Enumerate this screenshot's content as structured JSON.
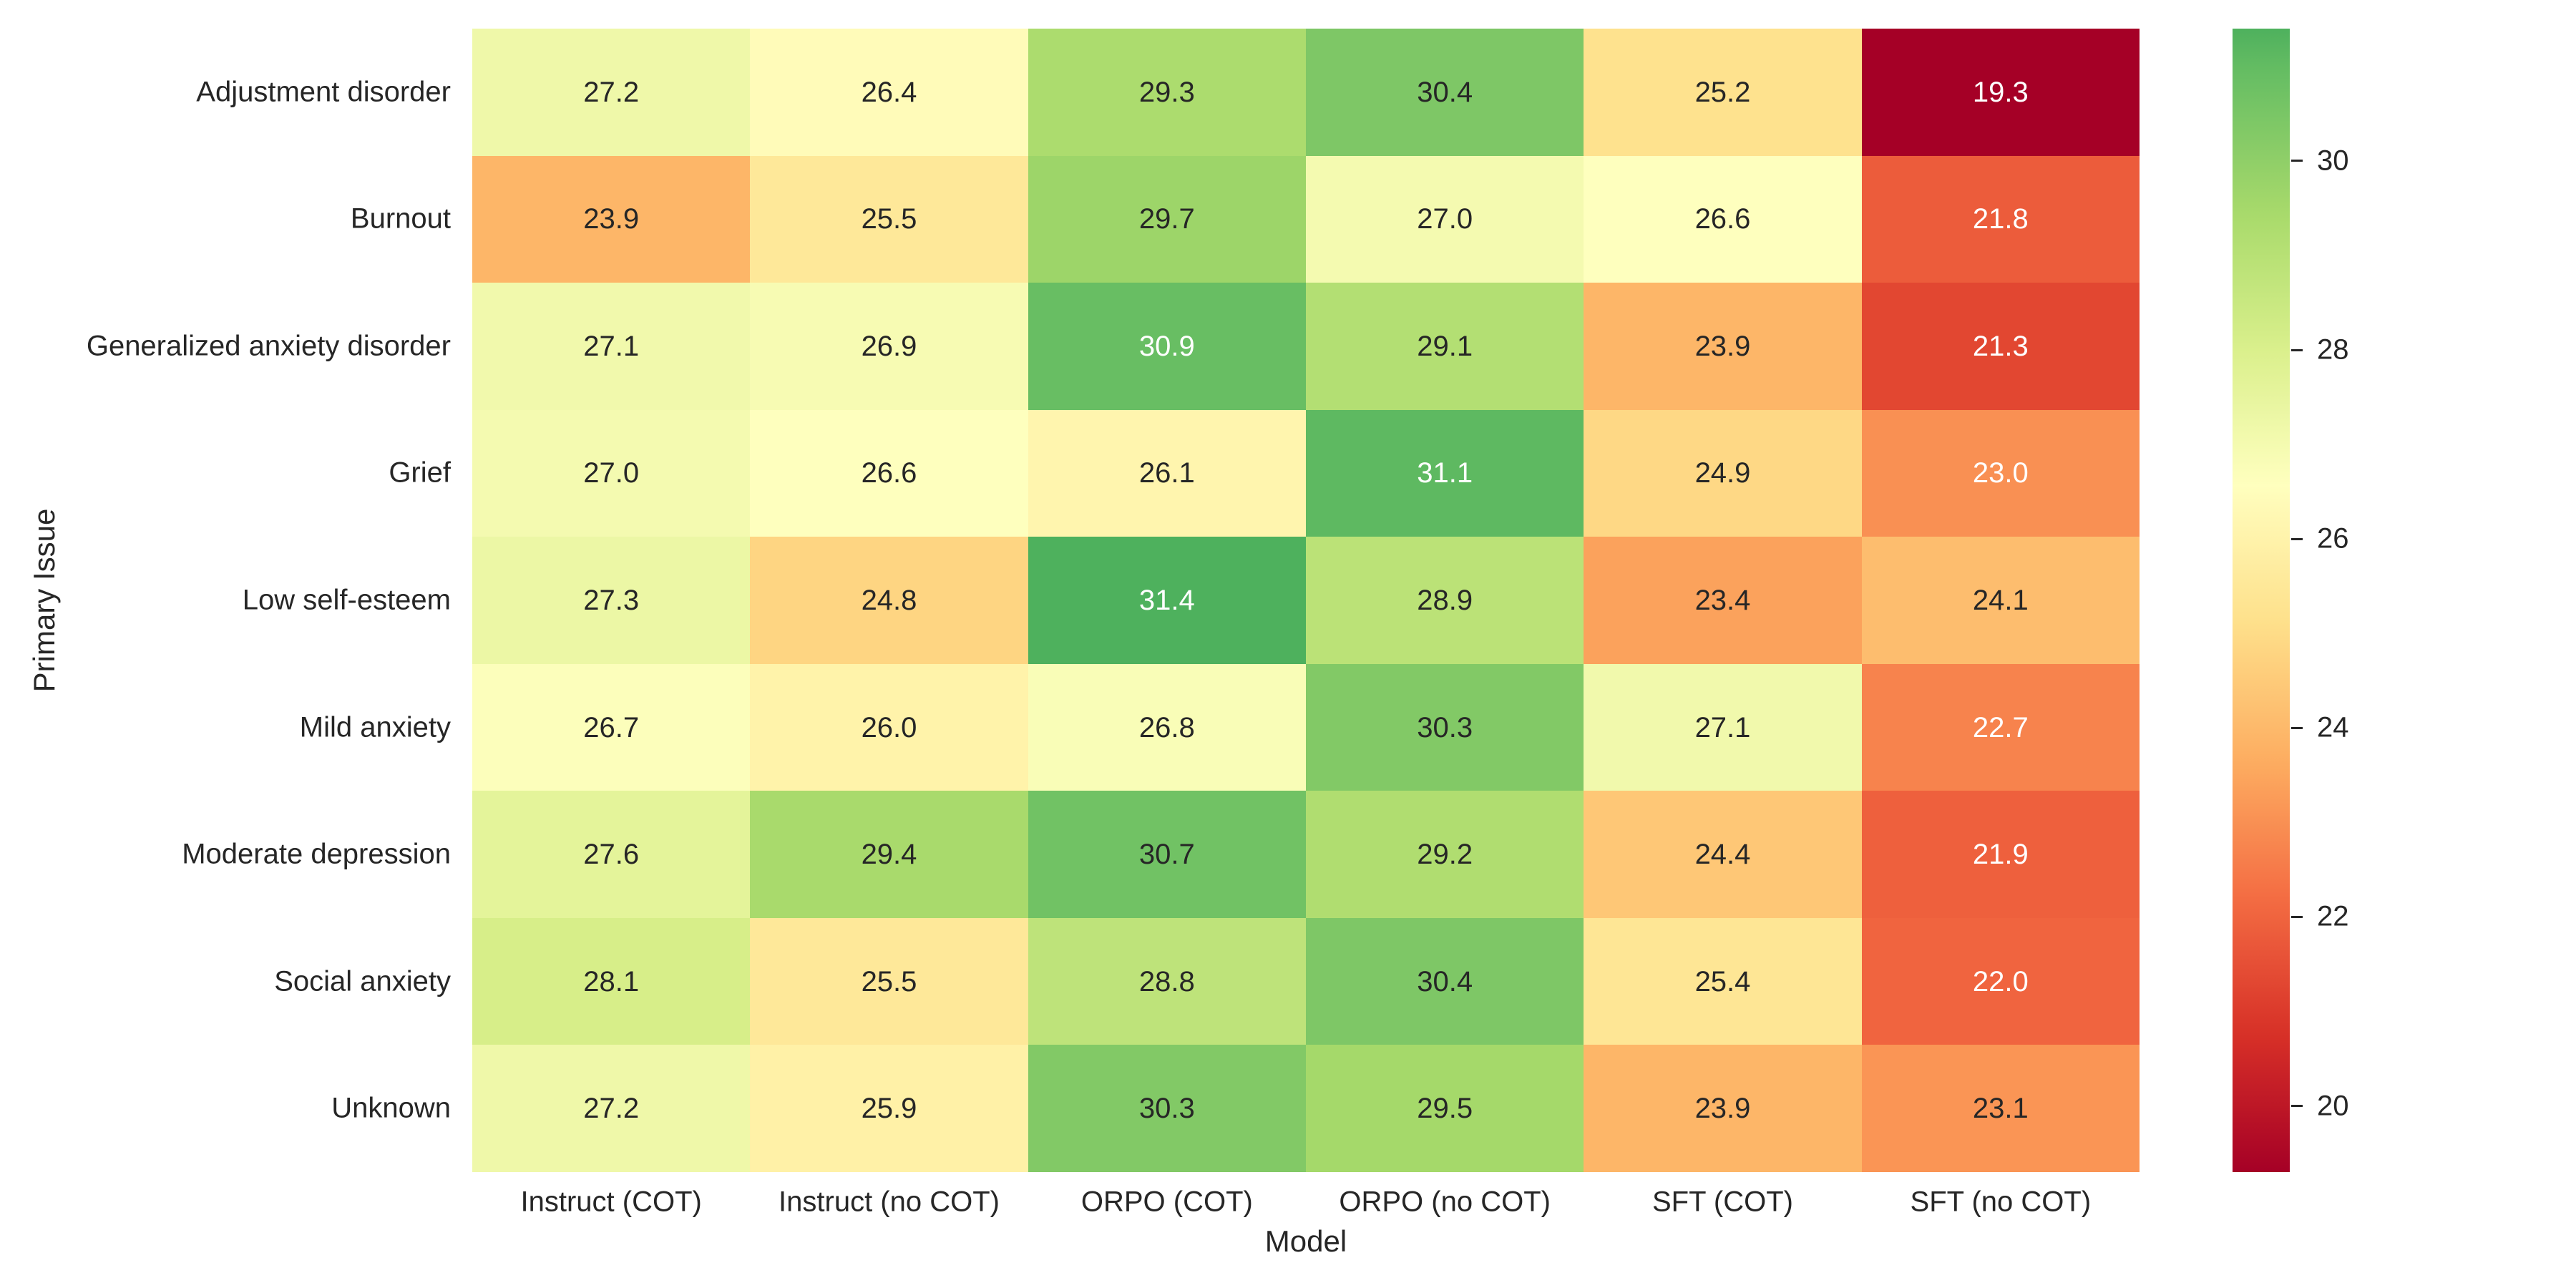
{
  "figure": {
    "background": "#ffffff",
    "text_color_dark": "#262626",
    "text_color_light": "#ffffff"
  },
  "chart_data": {
    "type": "heatmap",
    "title": "",
    "xlabel": "Model",
    "ylabel": "Primary Issue",
    "rows": [
      "Adjustment disorder",
      "Burnout",
      "Generalized anxiety disorder",
      "Grief",
      "Low self-esteem",
      "Mild anxiety",
      "Moderate depression",
      "Social anxiety",
      "Unknown"
    ],
    "columns": [
      "Instruct (COT)",
      "Instruct (no COT)",
      "ORPO (COT)",
      "ORPO (no COT)",
      "SFT (COT)",
      "SFT (no COT)"
    ],
    "values": [
      [
        27.2,
        26.4,
        29.3,
        30.4,
        25.2,
        19.3
      ],
      [
        23.9,
        25.5,
        29.7,
        27.0,
        26.6,
        21.8
      ],
      [
        27.1,
        26.9,
        30.9,
        29.1,
        23.9,
        21.3
      ],
      [
        27.0,
        26.6,
        26.1,
        31.1,
        24.9,
        23.0
      ],
      [
        27.3,
        24.8,
        31.4,
        28.9,
        23.4,
        24.1
      ],
      [
        26.7,
        26.0,
        26.8,
        30.3,
        27.1,
        22.7
      ],
      [
        27.6,
        29.4,
        30.7,
        29.2,
        24.4,
        21.9
      ],
      [
        28.1,
        25.5,
        28.8,
        30.4,
        25.4,
        22.0
      ],
      [
        27.2,
        25.9,
        30.3,
        29.5,
        23.9,
        23.1
      ]
    ],
    "value_decimals": 1,
    "grid": false,
    "legend": false,
    "colormap": {
      "name": "RdYlGn",
      "anchors": [
        "#a50026",
        "#d73027",
        "#f46d43",
        "#fdae61",
        "#fee08b",
        "#ffffbf",
        "#d9ef8b",
        "#a6d96a",
        "#66bd63",
        "#1a9850",
        "#006837"
      ],
      "vmin": 19.3,
      "vmax": 31.4,
      "effective_span": 14.55,
      "luminance_threshold": 0.408
    },
    "colorbar": {
      "position": "right",
      "ticks": [
        30,
        28,
        26,
        24,
        22,
        20
      ]
    }
  }
}
